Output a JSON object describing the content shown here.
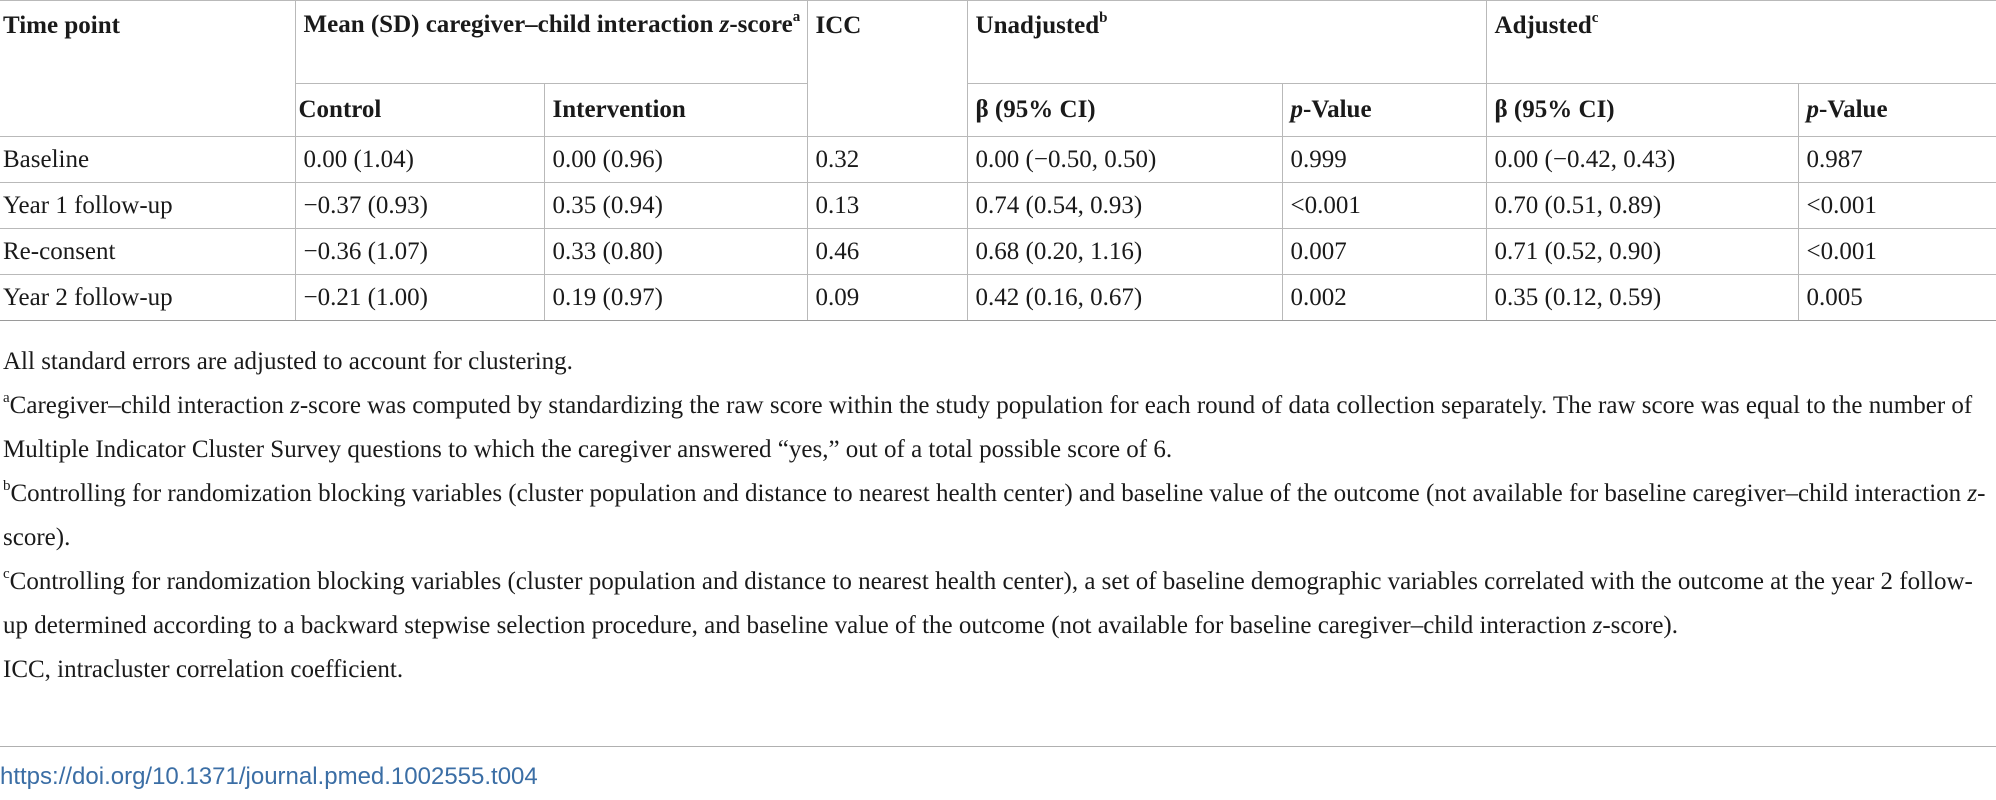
{
  "header": {
    "time_point": "Time point",
    "mean_group_a": "Mean (SD) caregiver–child interaction",
    "mean_group_z": "z",
    "mean_group_b": "-score",
    "mean_group_sup": "a",
    "control": "Control",
    "intervention": "Intervention",
    "icc": "ICC",
    "unadjusted": "Unadjusted",
    "unadjusted_sup": "b",
    "adjusted": "Adjusted",
    "adjusted_sup": "c",
    "beta_ci": "β (95% CI)",
    "p_italic": "p",
    "p_rest": "-Value"
  },
  "rows": [
    {
      "time_point": "Baseline",
      "control": "0.00 (1.04)",
      "intervention": "0.00 (0.96)",
      "icc": "0.32",
      "unadj_beta": "0.00 (−0.50, 0.50)",
      "unadj_p": "0.999",
      "adj_beta": "0.00 (−0.42, 0.43)",
      "adj_p": "0.987"
    },
    {
      "time_point": "Year 1 follow-up",
      "control": "−0.37 (0.93)",
      "intervention": "0.35 (0.94)",
      "icc": "0.13",
      "unadj_beta": "0.74 (0.54, 0.93)",
      "unadj_p": "<0.001",
      "adj_beta": "0.70 (0.51, 0.89)",
      "adj_p": "<0.001"
    },
    {
      "time_point": "Re-consent",
      "control": "−0.36 (1.07)",
      "intervention": "0.33 (0.80)",
      "icc": "0.46",
      "unadj_beta": "0.68 (0.20, 1.16)",
      "unadj_p": "0.007",
      "adj_beta": "0.71 (0.52, 0.90)",
      "adj_p": "<0.001"
    },
    {
      "time_point": "Year 2 follow-up",
      "control": "−0.21 (1.00)",
      "intervention": "0.19 (0.97)",
      "icc": "0.09",
      "unadj_beta": "0.42 (0.16, 0.67)",
      "unadj_p": "0.002",
      "adj_beta": "0.35 (0.12, 0.59)",
      "adj_p": "0.005"
    }
  ],
  "notes": {
    "general": "All standard errors are adjusted to account for clustering.",
    "a_sup": "a",
    "a_text1": "Caregiver–child interaction ",
    "a_z": "z",
    "a_text2": "-score was computed by standardizing the raw score within the study population for each round of data collection separately. The raw score was equal to the number of Multiple Indicator Cluster Survey questions to which the caregiver answered “yes,” out of a total possible score of 6.",
    "b_sup": "b",
    "b_text1": "Controlling for randomization blocking variables (cluster population and distance to nearest health center) and baseline value of the outcome (not available for baseline caregiver–child interaction ",
    "b_z": "z",
    "b_text2": "-score).",
    "c_sup": "c",
    "c_text1": "Controlling for randomization blocking variables (cluster population and distance to nearest health center), a set of baseline demographic variables correlated with the outcome at the year 2 follow-up determined according to a backward stepwise selection procedure, and baseline value of the outcome (not available for baseline caregiver–child interaction ",
    "c_z": "z",
    "c_text2": "-score).",
    "abbrev": "ICC, intracluster correlation coefficient."
  },
  "doi": "https://doi.org/10.1371/journal.pmed.1002555.t004"
}
